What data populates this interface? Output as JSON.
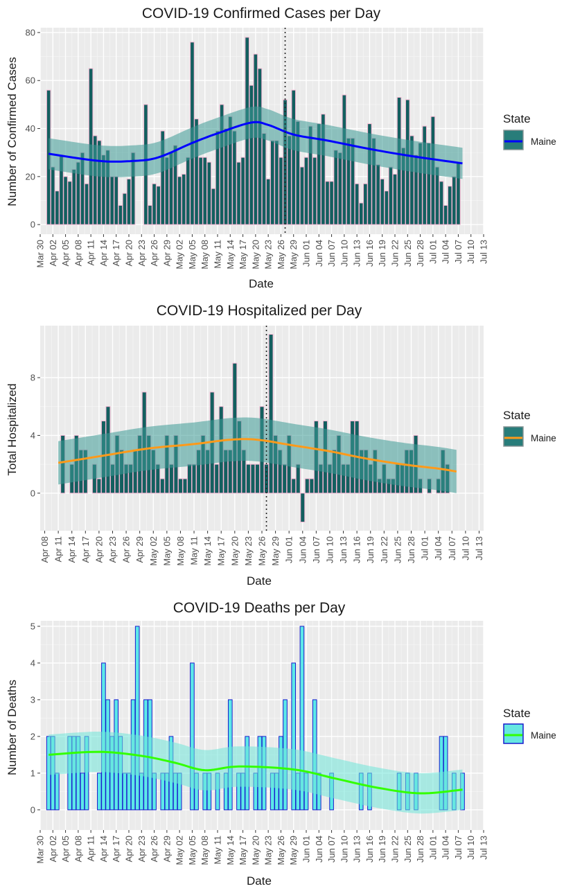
{
  "chart_data": [
    {
      "id": "cases",
      "type": "bar",
      "title": "COVID-19 Confirmed Cases per Day",
      "xlabel": "Date",
      "ylabel": "Number of Confirmed Cases",
      "start_date": "2020-04-01",
      "xlim": [
        "2020-03-30",
        "2020-07-13"
      ],
      "xticks": [
        "Mar 30",
        "Apr 02",
        "Apr 05",
        "Apr 08",
        "Apr 11",
        "Apr 14",
        "Apr 17",
        "Apr 20",
        "Apr 23",
        "Apr 26",
        "Apr 29",
        "May 02",
        "May 05",
        "May 08",
        "May 11",
        "May 14",
        "May 17",
        "May 20",
        "May 23",
        "May 26",
        "May 29",
        "Jun 01",
        "Jun 04",
        "Jun 07",
        "Jun 10",
        "Jun 13",
        "Jun 16",
        "Jun 19",
        "Jun 22",
        "Jun 25",
        "Jun 28",
        "Jul 01",
        "Jul 04",
        "Jul 07",
        "Jul 10",
        "Jul 13"
      ],
      "ylim": [
        -4,
        82
      ],
      "yticks": [
        0,
        20,
        40,
        60,
        80
      ],
      "vline": "2020-05-27",
      "values": [
        56,
        24,
        14,
        29,
        20,
        18,
        23,
        26,
        30,
        17,
        65,
        37,
        35,
        29,
        31,
        20,
        20,
        8,
        13,
        19,
        30,
        0,
        0,
        50,
        8,
        17,
        16,
        39,
        28,
        30,
        33,
        20,
        21,
        28,
        76,
        44,
        28,
        28,
        26,
        15,
        39,
        50,
        40,
        45,
        39,
        26,
        28,
        78,
        58,
        71,
        65,
        38,
        19,
        35,
        35,
        28,
        52,
        37,
        56,
        43,
        24,
        28,
        41,
        28,
        42,
        46,
        18,
        18,
        31,
        30,
        54,
        36,
        36,
        17,
        9,
        17,
        42,
        36,
        25,
        19,
        14,
        24,
        21,
        53,
        32,
        52,
        37,
        29,
        34,
        41,
        34,
        45,
        24,
        18,
        8,
        16,
        20,
        26
      ],
      "smooth": [
        [
          0,
          29.5
        ],
        [
          12,
          26.5
        ],
        [
          20,
          26.5
        ],
        [
          26,
          28
        ],
        [
          34,
          34
        ],
        [
          40,
          38
        ],
        [
          48,
          42.5
        ],
        [
          52,
          41.5
        ],
        [
          58,
          37.5
        ],
        [
          66,
          35
        ],
        [
          76,
          31.5
        ],
        [
          86,
          28.5
        ],
        [
          98,
          25.5
        ]
      ],
      "band": 6.5,
      "colors": {
        "bar_fill": "#135f5f",
        "bar_outline": "#f4b6d2",
        "line": "#0000ff",
        "band": "#3d9b95"
      },
      "legend": {
        "title": "State",
        "label": "Maine"
      }
    },
    {
      "id": "hosp",
      "type": "bar",
      "title": "COVID-19 Hospitalized per Day",
      "xlabel": "Date",
      "ylabel": "Total Hospitalized",
      "start_date": "2020-04-11",
      "xlim": [
        "2020-04-07",
        "2020-07-14"
      ],
      "xticks": [
        "Apr 08",
        "Apr 11",
        "Apr 14",
        "Apr 17",
        "Apr 20",
        "Apr 23",
        "Apr 26",
        "Apr 29",
        "May 02",
        "May 05",
        "May 08",
        "May 11",
        "May 14",
        "May 17",
        "May 20",
        "May 23",
        "May 26",
        "May 29",
        "Jun 01",
        "Jun 04",
        "Jun 07",
        "Jun 10",
        "Jun 13",
        "Jun 16",
        "Jun 19",
        "Jun 22",
        "Jun 25",
        "Jun 28",
        "Jul 01",
        "Jul 04",
        "Jul 07",
        "Jul 10",
        "Jul 13"
      ],
      "ylim": [
        -2.6,
        11.6
      ],
      "yticks": [
        0,
        4,
        8
      ],
      "vline": "2020-05-27",
      "values": [
        0,
        4,
        0,
        2,
        4,
        3,
        3,
        0,
        2,
        1,
        5,
        6,
        2,
        4,
        3,
        2,
        2,
        3,
        4,
        7,
        4,
        3,
        2,
        1,
        4,
        2,
        4,
        1,
        1,
        2,
        2,
        3,
        4,
        3,
        7,
        2,
        6,
        3,
        3,
        9,
        5,
        3,
        2,
        2,
        2,
        6,
        2,
        11,
        4,
        3,
        2,
        4,
        1,
        2,
        2,
        1,
        1,
        5,
        2,
        5,
        2,
        3,
        4,
        2,
        2,
        5,
        5,
        3,
        3,
        2,
        3,
        1,
        2,
        1,
        1,
        2,
        2,
        3,
        3,
        4,
        1,
        0,
        1,
        0,
        1,
        3,
        2
      ],
      "override": {
        "54": -2
      },
      "smooth": [
        [
          0,
          2.1
        ],
        [
          10,
          2.6
        ],
        [
          20,
          3.1
        ],
        [
          30,
          3.4
        ],
        [
          38,
          3.7
        ],
        [
          44,
          3.7
        ],
        [
          52,
          3.3
        ],
        [
          60,
          2.9
        ],
        [
          68,
          2.4
        ],
        [
          76,
          2.0
        ],
        [
          84,
          1.7
        ],
        [
          88,
          1.5
        ]
      ],
      "band": 1.5,
      "colors": {
        "bar_fill": "#135f5f",
        "bar_outline": "#f4b6d2",
        "line": "#ff9a1a",
        "band": "#3d9b95"
      },
      "legend": {
        "title": "State",
        "label": "Maine"
      }
    },
    {
      "id": "deaths",
      "type": "bar",
      "title": "COVID-19 Deaths per Day",
      "xlabel": "Date",
      "ylabel": "Number of Deaths",
      "start_date": "2020-04-01",
      "xlim": [
        "2020-03-30",
        "2020-07-13"
      ],
      "xticks": [
        "Mar 30",
        "Apr 02",
        "Apr 05",
        "Apr 08",
        "Apr 11",
        "Apr 14",
        "Apr 17",
        "Apr 20",
        "Apr 23",
        "Apr 26",
        "Apr 29",
        "May 02",
        "May 05",
        "May 08",
        "May 11",
        "May 14",
        "May 17",
        "May 20",
        "May 23",
        "May 26",
        "May 29",
        "Jun 01",
        "Jun 04",
        "Jun 07",
        "Jun 10",
        "Jun 13",
        "Jun 16",
        "Jun 19",
        "Jun 22",
        "Jun 25",
        "Jun 28",
        "Jul 01",
        "Jul 04",
        "Jul 07",
        "Jul 10",
        "Jul 13"
      ],
      "ylim": [
        -0.55,
        5.15
      ],
      "yticks": [
        0,
        1,
        2,
        3,
        4,
        5
      ],
      "values": [
        2,
        2,
        1,
        0,
        0,
        2,
        2,
        2,
        1,
        2,
        0,
        0,
        1,
        4,
        3,
        2,
        3,
        2,
        1,
        1,
        3,
        5,
        1,
        3,
        3,
        1,
        0,
        1,
        1,
        2,
        1,
        1,
        0,
        0,
        4,
        1,
        0,
        1,
        1,
        0,
        1,
        0,
        1,
        3,
        0,
        1,
        1,
        2,
        0,
        1,
        2,
        2,
        0,
        1,
        1,
        2,
        3,
        0,
        4,
        1,
        5,
        1,
        0,
        3,
        1,
        0,
        0,
        1,
        0,
        0,
        0,
        0,
        0,
        0,
        1,
        0,
        1,
        0,
        0,
        0,
        0,
        0,
        0,
        1,
        0,
        1,
        0,
        1,
        0,
        0,
        0,
        0,
        0,
        2,
        2,
        0,
        1,
        0,
        1
      ],
      "smooth": [
        [
          0,
          1.5
        ],
        [
          12,
          1.58
        ],
        [
          22,
          1.47
        ],
        [
          30,
          1.28
        ],
        [
          37,
          1.08
        ],
        [
          45,
          1.18
        ],
        [
          58,
          1.1
        ],
        [
          68,
          0.85
        ],
        [
          78,
          0.6
        ],
        [
          88,
          0.45
        ],
        [
          98,
          0.55
        ]
      ],
      "band": 0.55,
      "colors": {
        "bar_fill": "#5ce8e8",
        "bar_outline": "#1a1acc",
        "line": "#33ff00",
        "band": "#70e6d9"
      },
      "legend": {
        "title": "State",
        "label": "Maine"
      }
    }
  ]
}
